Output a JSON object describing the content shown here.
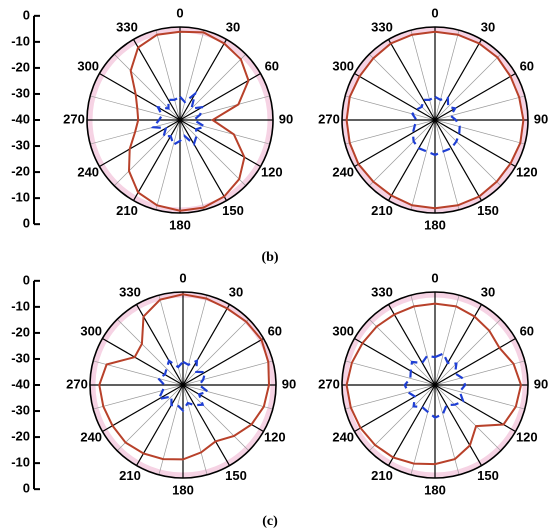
{
  "chart_data": [
    {
      "type": "polar",
      "rlim": [
        -40,
        0
      ],
      "rticks": [
        0,
        -10,
        -20,
        -30,
        -40,
        -30,
        -20,
        -10,
        0
      ],
      "angle_ticks": [
        0,
        30,
        60,
        90,
        120,
        150,
        180,
        210,
        240,
        270,
        300,
        330
      ],
      "theta": [
        0,
        15,
        30,
        45,
        60,
        75,
        90,
        105,
        120,
        135,
        150,
        165,
        180,
        195,
        210,
        225,
        240,
        255,
        270,
        285,
        300,
        315,
        330,
        345
      ],
      "series": [
        {
          "color": "#b8412a",
          "dashed": false,
          "values": [
            -2,
            -1,
            -2,
            -3,
            -6,
            -14,
            -26,
            -16,
            -8,
            -4,
            -2,
            -1,
            -1,
            -2,
            -4,
            -9,
            -15,
            -20,
            -22,
            -21,
            -18,
            -10,
            -4,
            -2
          ]
        },
        {
          "color": "#1f3fd4",
          "dashed": true,
          "values": [
            -30,
            -32,
            -27,
            -33,
            -29,
            -31,
            -34,
            -29,
            -32,
            -30,
            -28,
            -33,
            -31,
            -29,
            -32,
            -30,
            -33,
            -28,
            -31,
            -32,
            -29,
            -33,
            -30,
            -31
          ]
        }
      ]
    },
    {
      "type": "polar",
      "rlim": [
        -40,
        0
      ],
      "angle_ticks": [
        0,
        30,
        60,
        90,
        120,
        150,
        180,
        210,
        240,
        270,
        300,
        330
      ],
      "theta": [
        0,
        15,
        30,
        45,
        60,
        75,
        90,
        105,
        120,
        135,
        150,
        165,
        180,
        195,
        210,
        225,
        240,
        255,
        270,
        285,
        300,
        315,
        330,
        345
      ],
      "series": [
        {
          "color": "#b8412a",
          "dashed": false,
          "values": [
            -2,
            -2,
            -2,
            -2,
            -2.5,
            -2.5,
            -2,
            -2,
            -2.5,
            -2.5,
            -2,
            -2,
            -2,
            -2,
            -2.5,
            -2.5,
            -2,
            -2,
            -2,
            -2,
            -2.5,
            -2.5,
            -2,
            -2
          ]
        },
        {
          "color": "#1f3fd4",
          "dashed": true,
          "values": [
            -30,
            -31,
            -29,
            -32,
            -30,
            -33,
            -31,
            -29,
            -28,
            -27,
            -26,
            -26,
            -25,
            -26,
            -26,
            -27,
            -29,
            -31,
            -32,
            -30,
            -31,
            -32,
            -30,
            -31
          ]
        }
      ]
    },
    {
      "type": "polar",
      "rlim": [
        -40,
        0
      ],
      "rticks": [
        0,
        -10,
        -20,
        -30,
        -40,
        -30,
        -20,
        -10,
        0
      ],
      "angle_ticks": [
        0,
        30,
        60,
        90,
        120,
        150,
        180,
        210,
        240,
        270,
        300,
        330
      ],
      "theta": [
        0,
        15,
        30,
        45,
        60,
        75,
        90,
        105,
        120,
        135,
        150,
        165,
        180,
        195,
        210,
        225,
        240,
        255,
        270,
        285,
        300,
        315,
        330,
        345
      ],
      "series": [
        {
          "color": "#b8412a",
          "dashed": false,
          "values": [
            -1,
            -1.5,
            -2,
            -1.5,
            -1,
            -2,
            -3,
            -4,
            -6,
            -9,
            -12,
            -10,
            -8,
            -7,
            -6,
            -5,
            -5,
            -4.5,
            -4,
            -6,
            -16,
            -15,
            -6,
            -2
          ]
        },
        {
          "color": "#1f3fd4",
          "dashed": true,
          "values": [
            -30,
            -31,
            -28,
            -32,
            -29,
            -31,
            -33,
            -29,
            -32,
            -28,
            -30,
            -32,
            -29,
            -31,
            -30,
            -33,
            -28,
            -31,
            -32,
            -29,
            -31,
            -30,
            -28,
            -32
          ]
        }
      ]
    },
    {
      "type": "polar",
      "rlim": [
        -40,
        0
      ],
      "angle_ticks": [
        0,
        30,
        60,
        90,
        120,
        150,
        180,
        210,
        240,
        270,
        300,
        330
      ],
      "theta": [
        0,
        15,
        30,
        45,
        60,
        75,
        90,
        105,
        120,
        135,
        150,
        165,
        180,
        195,
        210,
        225,
        240,
        255,
        270,
        285,
        300,
        315,
        330,
        345
      ],
      "series": [
        {
          "color": "#b8412a",
          "dashed": false,
          "values": [
            -5,
            -5,
            -6,
            -7,
            -8,
            -5,
            -3,
            -4,
            -6,
            -15,
            -10,
            -7,
            -6,
            -5,
            -4,
            -3.5,
            -3,
            -2.5,
            -2,
            -3,
            -4,
            -4.5,
            -5,
            -5
          ]
        },
        {
          "color": "#1f3fd4",
          "dashed": true,
          "values": [
            -28,
            -26,
            -29,
            -27,
            -30,
            -28,
            -27,
            -29,
            -26,
            -28,
            -30,
            -27,
            -26,
            -28,
            -29,
            -27,
            -30,
            -28,
            -27,
            -29,
            -28,
            -26,
            -29,
            -27
          ]
        }
      ]
    }
  ],
  "captions": [
    "(b)",
    "(c)"
  ]
}
